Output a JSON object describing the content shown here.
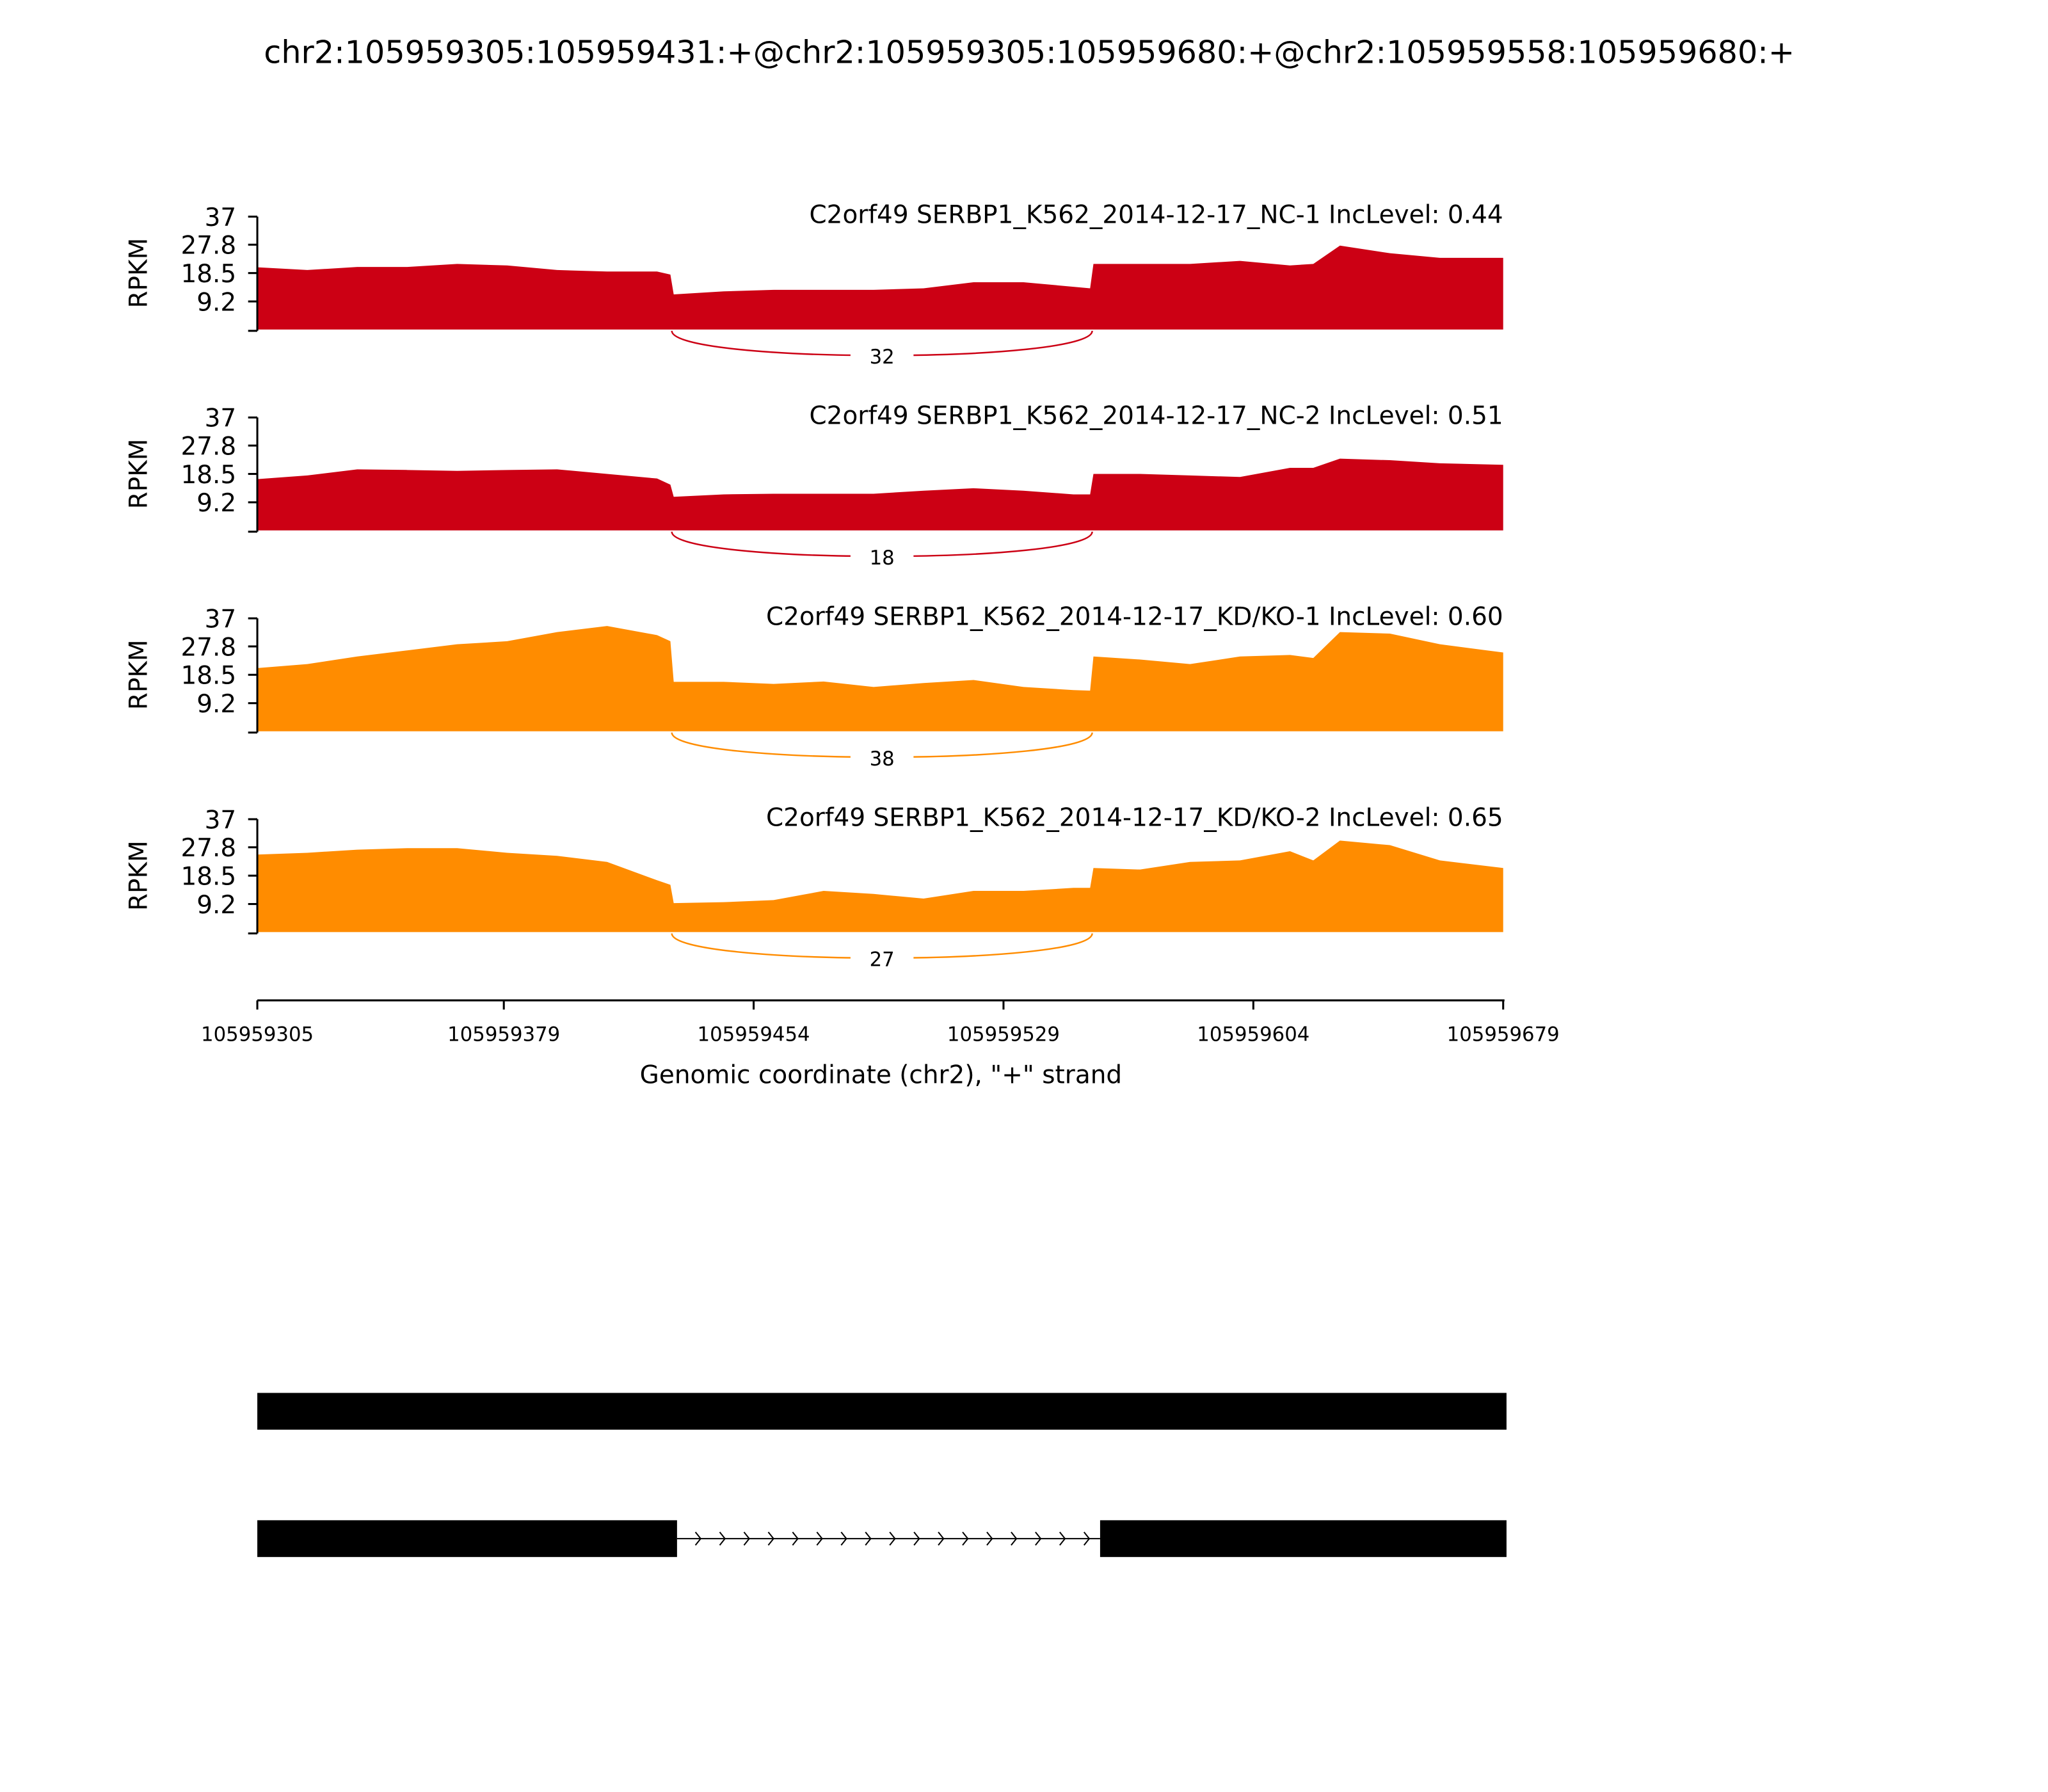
{
  "chart_data": {
    "type": "sashimi",
    "title": "chr2:105959305:105959431:+@chr2:105959305:105959680:+@chr2:105959558:105959680:+",
    "ylabel": "RPKM",
    "xlabel": "Genomic coordinate (chr2), \"+\" strand",
    "ylim": [
      0,
      37
    ],
    "yticks": [
      9.2,
      18.5,
      27.8,
      37
    ],
    "xlim": [
      105959305,
      105959679
    ],
    "xticks": [
      105959305,
      105959379,
      105959454,
      105959529,
      105959604,
      105959679
    ],
    "x": [
      105959305,
      105959320,
      105959335,
      105959350,
      105959365,
      105959380,
      105959395,
      105959410,
      105959425,
      105959429,
      105959430,
      105959445,
      105959460,
      105959475,
      105959490,
      105959505,
      105959520,
      105959535,
      105959550,
      105959555,
      105959556,
      105959570,
      105959585,
      105959600,
      105959615,
      105959622,
      105959630,
      105959645,
      105959660,
      105959679
    ],
    "junction_start": 105959431,
    "junction_end": 105959558,
    "series": [
      {
        "name": "C2orf49 SERBP1_K562_2014-12-17_NC-1 IncLevel: 0.44",
        "color": "#cc0014",
        "junction_count": 32,
        "values": [
          20.4,
          19.5,
          20.5,
          20.5,
          21.5,
          21,
          19.5,
          19,
          19,
          18,
          11.5,
          12.5,
          13,
          13,
          13,
          13.5,
          15.5,
          15.5,
          14,
          13.5,
          21.5,
          21.5,
          21.5,
          22.5,
          21,
          21.5,
          27.5,
          25,
          23.5,
          23.5
        ]
      },
      {
        "name": "C2orf49 SERBP1_K562_2014-12-17_NC-2 IncLevel: 0.51",
        "color": "#cc0014",
        "junction_count": 18,
        "values": [
          16.8,
          18,
          20,
          19.8,
          19.5,
          19.8,
          20,
          18.5,
          17,
          15,
          11,
          11.8,
          12,
          12,
          12,
          13,
          13.8,
          13,
          11.8,
          11.8,
          18.5,
          18.5,
          18,
          17.5,
          20.5,
          20.5,
          23.5,
          23,
          22,
          21.5
        ]
      },
      {
        "name": "C2orf49 SERBP1_K562_2014-12-17_KD/KO-1 IncLevel: 0.60",
        "color": "#ff8c00",
        "junction_count": 38,
        "values": [
          20.7,
          22,
          24.5,
          26.5,
          28.5,
          29.5,
          32.5,
          34.5,
          31.5,
          29.5,
          16.2,
          16.2,
          15.5,
          16.3,
          14.5,
          15.8,
          16.8,
          14.5,
          13.5,
          13.3,
          24.5,
          23.5,
          22,
          24.5,
          25,
          24,
          32.5,
          32,
          28.5,
          25.8
        ]
      },
      {
        "name": "C2orf49 SERBP1_K562_2014-12-17_KD/KO-2 IncLevel: 0.65",
        "color": "#ff8c00",
        "junction_count": 27,
        "values": [
          25.4,
          26,
          27,
          27.5,
          27.5,
          26,
          25,
          23,
          17,
          15.5,
          9.5,
          9.8,
          10.5,
          13.5,
          12.5,
          11,
          13.5,
          13.5,
          14.5,
          14.5,
          21,
          20.5,
          23,
          23.5,
          26.5,
          23.5,
          30,
          28.5,
          23.5,
          21
        ]
      }
    ],
    "isoforms": [
      {
        "exons": [
          [
            105959305,
            105959680
          ]
        ]
      },
      {
        "exons": [
          [
            105959305,
            105959431
          ],
          [
            105959558,
            105959680
          ]
        ]
      }
    ]
  }
}
